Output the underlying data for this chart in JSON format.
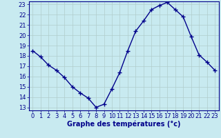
{
  "hours": [
    0,
    1,
    2,
    3,
    4,
    5,
    6,
    7,
    8,
    9,
    10,
    11,
    12,
    13,
    14,
    15,
    16,
    17,
    18,
    19,
    20,
    21,
    22,
    23
  ],
  "temps": [
    18.5,
    17.9,
    17.1,
    16.6,
    15.9,
    15.0,
    14.4,
    13.9,
    13.0,
    13.3,
    14.8,
    16.4,
    18.5,
    20.4,
    21.4,
    22.5,
    22.9,
    23.2,
    22.5,
    21.8,
    19.9,
    18.1,
    17.4,
    16.6
  ],
  "line_color": "#00008b",
  "marker": "+",
  "bg_color": "#c8eaf0",
  "grid_color": "#b0cccc",
  "xlabel": "Graphe des températures (°c)",
  "xlabel_color": "#00008b",
  "tick_color": "#00008b",
  "ylim_min": 12.7,
  "ylim_max": 23.3,
  "xlim_min": -0.5,
  "xlim_max": 23.5,
  "yticks": [
    13,
    14,
    15,
    16,
    17,
    18,
    19,
    20,
    21,
    22,
    23
  ],
  "xticks": [
    0,
    1,
    2,
    3,
    4,
    5,
    6,
    7,
    8,
    9,
    10,
    11,
    12,
    13,
    14,
    15,
    16,
    17,
    18,
    19,
    20,
    21,
    22,
    23
  ],
  "xlabel_fontsize": 7,
  "tick_fontsize": 6,
  "linewidth": 1.0,
  "markersize": 4,
  "grid_linewidth": 0.5
}
